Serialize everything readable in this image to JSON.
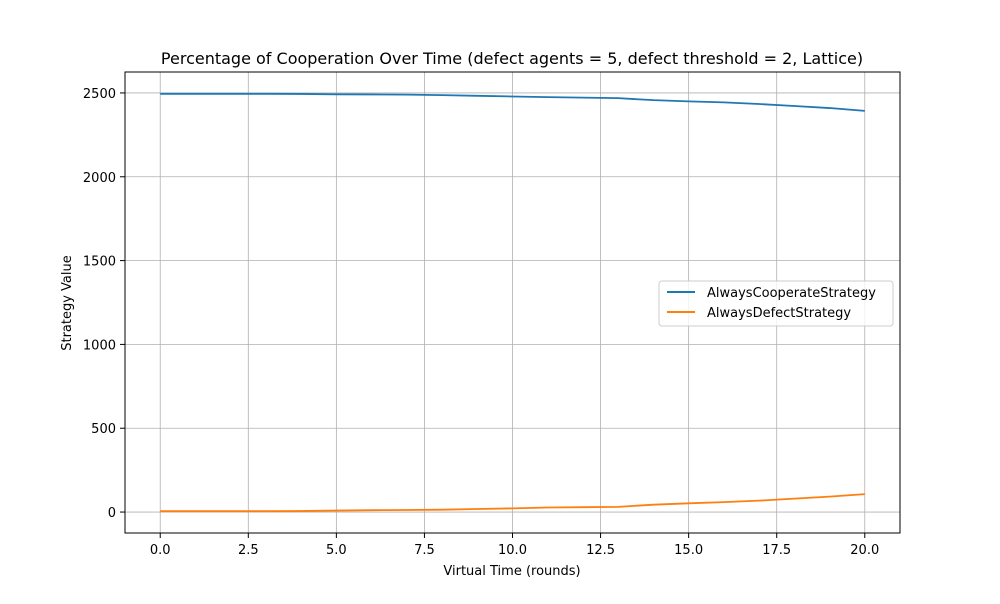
{
  "chart_data": {
    "type": "line",
    "title": "Percentage of Cooperation Over Time (defect agents = 5, defect threshold = 2, Lattice)",
    "xlabel": "Virtual Time (rounds)",
    "ylabel": "Strategy Value",
    "xlim": [
      -1.0,
      21.0
    ],
    "ylim": [
      -125,
      2625
    ],
    "x_ticks": [
      0.0,
      2.5,
      5.0,
      7.5,
      10.0,
      12.5,
      15.0,
      17.5,
      20.0
    ],
    "x_tick_labels": [
      "0.0",
      "2.5",
      "5.0",
      "7.5",
      "10.0",
      "12.5",
      "15.0",
      "17.5",
      "20.0"
    ],
    "y_ticks": [
      0,
      500,
      1000,
      1500,
      2000,
      2500
    ],
    "y_tick_labels": [
      "0",
      "500",
      "1000",
      "1500",
      "2000",
      "2500"
    ],
    "grid": true,
    "legend_position": "center-right",
    "x": [
      0,
      1,
      2,
      3,
      4,
      5,
      6,
      7,
      8,
      9,
      10,
      11,
      12,
      13,
      14,
      15,
      16,
      17,
      18,
      19,
      20
    ],
    "series": [
      {
        "name": "AlwaysCooperateStrategy",
        "color": "#1f77b4",
        "values": [
          2495,
          2495,
          2495,
          2495,
          2494,
          2492,
          2491,
          2490,
          2487,
          2483,
          2479,
          2475,
          2472,
          2469,
          2457,
          2450,
          2444,
          2434,
          2422,
          2410,
          2393
        ]
      },
      {
        "name": "AlwaysDefectStrategy",
        "color": "#ff7f0e",
        "values": [
          5,
          5,
          5,
          5,
          6,
          9,
          11,
          12,
          14,
          18,
          22,
          27,
          29,
          31,
          44,
          52,
          59,
          68,
          80,
          92,
          107
        ]
      }
    ]
  }
}
